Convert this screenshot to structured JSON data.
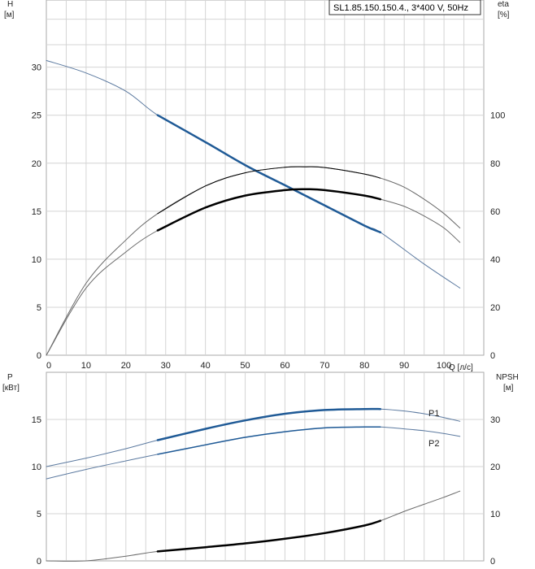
{
  "legend": {
    "text": "SL1.85.150.150.4., 3*400 V, 50Hz"
  },
  "colors": {
    "blue": "#1f5a96",
    "thinBlue": "#5c7aa0",
    "thinGrey": "#6a6a6a",
    "black": "#000000",
    "grid": "#d4d4d4"
  },
  "chart_data": [
    {
      "type": "line",
      "panel": "top",
      "xlabel": "Q [л/с]",
      "xlim": [
        0,
        110
      ],
      "xticks": [
        0,
        10,
        20,
        30,
        40,
        50,
        60,
        70,
        80,
        90,
        100
      ],
      "y_left": {
        "label_line1": "H",
        "label_line2": "[м]",
        "lim": [
          0,
          37
        ],
        "ticks": [
          0,
          5,
          10,
          15,
          20,
          25,
          30
        ]
      },
      "y_right": {
        "label_line1": "eta",
        "label_line2": "[%]",
        "lim": [
          0,
          148
        ],
        "ticks": [
          0,
          20,
          40,
          60,
          80,
          100
        ]
      },
      "grid": true,
      "series": [
        {
          "key": "h_full",
          "axis": "left",
          "style": "thin-blue",
          "points": [
            [
              0,
              30.7
            ],
            [
              10,
              29.4
            ],
            [
              20,
              27.5
            ],
            [
              28,
              25.0
            ],
            [
              40,
              22.2
            ],
            [
              50,
              19.8
            ],
            [
              60,
              17.7
            ],
            [
              70,
              15.6
            ],
            [
              80,
              13.5
            ],
            [
              84,
              12.8
            ],
            [
              95,
              9.5
            ],
            [
              104,
              7.0
            ]
          ]
        },
        {
          "key": "h_operating",
          "axis": "left",
          "style": "thick-blue",
          "points": [
            [
              28,
              25.0
            ],
            [
              40,
              22.2
            ],
            [
              50,
              19.8
            ],
            [
              60,
              17.7
            ],
            [
              70,
              15.6
            ],
            [
              80,
              13.5
            ],
            [
              84,
              12.8
            ]
          ]
        },
        {
          "key": "eta_upper_full",
          "axis": "right",
          "style": "thin-grey",
          "points": [
            [
              0,
              0
            ],
            [
              10,
              30
            ],
            [
              20,
              48
            ],
            [
              28,
              59
            ],
            [
              40,
              70.5
            ],
            [
              50,
              76
            ],
            [
              60,
              78.3
            ],
            [
              65,
              78.5
            ],
            [
              70,
              78.2
            ],
            [
              80,
              75.5
            ],
            [
              85,
              73.3
            ],
            [
              90,
              70
            ],
            [
              95,
              65
            ],
            [
              100,
              59
            ],
            [
              104,
              53
            ]
          ]
        },
        {
          "key": "eta_upper_operating",
          "axis": "right",
          "style": "thin-black",
          "points": [
            [
              28,
              59
            ],
            [
              40,
              70.5
            ],
            [
              50,
              76
            ],
            [
              60,
              78.3
            ],
            [
              65,
              78.5
            ],
            [
              70,
              78.2
            ],
            [
              80,
              75.5
            ],
            [
              84,
              73.8
            ]
          ]
        },
        {
          "key": "eta_lower_full",
          "axis": "right",
          "style": "thin-grey",
          "points": [
            [
              0,
              0
            ],
            [
              10,
              28
            ],
            [
              20,
              43
            ],
            [
              28,
              52
            ],
            [
              40,
              61.5
            ],
            [
              50,
              66.5
            ],
            [
              60,
              68.8
            ],
            [
              65,
              69.2
            ],
            [
              70,
              68.8
            ],
            [
              80,
              66.5
            ],
            [
              84,
              65
            ],
            [
              90,
              62
            ],
            [
              95,
              58
            ],
            [
              100,
              53
            ],
            [
              104,
              47
            ]
          ]
        },
        {
          "key": "eta_lower_operating",
          "axis": "right",
          "style": "thick-black",
          "points": [
            [
              28,
              52
            ],
            [
              40,
              61.5
            ],
            [
              50,
              66.5
            ],
            [
              60,
              68.8
            ],
            [
              65,
              69.2
            ],
            [
              70,
              68.8
            ],
            [
              80,
              66.5
            ],
            [
              84,
              65
            ]
          ]
        }
      ]
    },
    {
      "type": "line",
      "panel": "bottom",
      "xlim": [
        0,
        110
      ],
      "xticks": [
        0,
        10,
        20,
        30,
        40,
        50,
        60,
        70,
        80,
        90,
        100
      ],
      "y_left": {
        "label_line1": "P",
        "label_line2": "[кВт]",
        "lim": [
          0,
          20
        ],
        "ticks": [
          0,
          5,
          10,
          15
        ]
      },
      "y_right": {
        "label_line1": "NPSH",
        "label_line2": "[м]",
        "lim": [
          0,
          40
        ],
        "ticks": [
          0,
          10,
          20,
          30
        ]
      },
      "grid": true,
      "series": [
        {
          "key": "p1_full",
          "axis": "left",
          "style": "thin-blue",
          "name": "P1",
          "points": [
            [
              0,
              10.0
            ],
            [
              10,
              10.9
            ],
            [
              20,
              11.9
            ],
            [
              28,
              12.8
            ],
            [
              40,
              14.0
            ],
            [
              50,
              14.9
            ],
            [
              60,
              15.6
            ],
            [
              70,
              16.0
            ],
            [
              80,
              16.1
            ],
            [
              84,
              16.1
            ],
            [
              90,
              15.9
            ],
            [
              95,
              15.6
            ],
            [
              100,
              15.2
            ],
            [
              104,
              14.8
            ]
          ]
        },
        {
          "key": "p1_operating",
          "axis": "left",
          "style": "thick-blue",
          "points": [
            [
              28,
              12.8
            ],
            [
              40,
              14.0
            ],
            [
              50,
              14.9
            ],
            [
              60,
              15.6
            ],
            [
              70,
              16.0
            ],
            [
              80,
              16.1
            ],
            [
              84,
              16.1
            ]
          ]
        },
        {
          "key": "p2_full",
          "axis": "left",
          "style": "thin-blue",
          "name": "P2",
          "points": [
            [
              0,
              8.7
            ],
            [
              10,
              9.7
            ],
            [
              20,
              10.6
            ],
            [
              28,
              11.3
            ],
            [
              40,
              12.3
            ],
            [
              50,
              13.1
            ],
            [
              60,
              13.7
            ],
            [
              70,
              14.1
            ],
            [
              80,
              14.2
            ],
            [
              84,
              14.2
            ],
            [
              90,
              14.0
            ],
            [
              95,
              13.8
            ],
            [
              100,
              13.5
            ],
            [
              104,
              13.2
            ]
          ]
        },
        {
          "key": "p2_operating",
          "axis": "left",
          "style": "mid-blue",
          "points": [
            [
              28,
              11.3
            ],
            [
              40,
              12.3
            ],
            [
              50,
              13.1
            ],
            [
              60,
              13.7
            ],
            [
              70,
              14.1
            ],
            [
              80,
              14.2
            ],
            [
              84,
              14.2
            ]
          ]
        },
        {
          "key": "npsh_full",
          "axis": "right",
          "style": "thin-grey",
          "points": [
            [
              0,
              0
            ],
            [
              10,
              0
            ],
            [
              20,
              1.0
            ],
            [
              28,
              2.0
            ],
            [
              40,
              2.9
            ],
            [
              50,
              3.7
            ],
            [
              60,
              4.7
            ],
            [
              70,
              5.9
            ],
            [
              80,
              7.5
            ],
            [
              84,
              8.5
            ],
            [
              90,
              10.5
            ],
            [
              95,
              12.0
            ],
            [
              100,
              13.5
            ],
            [
              104,
              14.8
            ]
          ]
        },
        {
          "key": "npsh_operating",
          "axis": "right",
          "style": "thick-black",
          "points": [
            [
              28,
              2.0
            ],
            [
              40,
              2.9
            ],
            [
              50,
              3.7
            ],
            [
              60,
              4.7
            ],
            [
              70,
              5.9
            ],
            [
              80,
              7.5
            ],
            [
              84,
              8.5
            ]
          ]
        }
      ]
    }
  ]
}
